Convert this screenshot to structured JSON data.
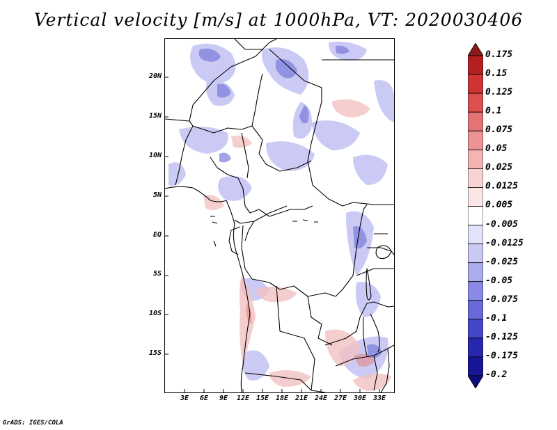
{
  "title": "Vertical velocity [m/s] at 1000hPa, VT: 2020030406",
  "credit": "GrADS: IGES/COLA",
  "lat_labels": [
    "20N",
    "15N",
    "10N",
    "5N",
    "EQ",
    "5S",
    "10S",
    "15S"
  ],
  "lon_labels": [
    "3E",
    "6E",
    "9E",
    "12E",
    "15E",
    "18E",
    "21E",
    "24E",
    "27E",
    "30E",
    "33E"
  ],
  "colorbar": {
    "labels": [
      "0.175",
      "0.15",
      "0.125",
      "0.1",
      "0.075",
      "0.05",
      "0.025",
      "0.0125",
      "0.005",
      "-0.005",
      "-0.0125",
      "-0.025",
      "-0.05",
      "-0.075",
      "-0.1",
      "-0.125",
      "-0.175",
      "-0.2"
    ],
    "colors": [
      "#8b1a1a",
      "#b51f1f",
      "#cf3333",
      "#de4f4f",
      "#e57373",
      "#ec9393",
      "#f4b4b4",
      "#f9d2d2",
      "#fbe6e6",
      "#ffffff",
      "#e2e2fb",
      "#c9c9f6",
      "#ababee",
      "#8a8ae6",
      "#6969d9",
      "#4545c9",
      "#2727b0",
      "#161697",
      "#0c0c7a"
    ]
  }
}
